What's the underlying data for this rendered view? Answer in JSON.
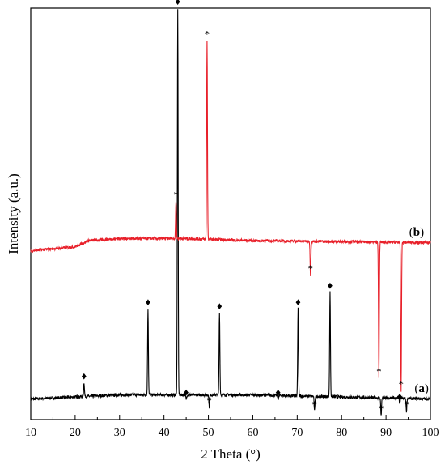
{
  "chart_data": {
    "type": "line",
    "xlabel": "2 Theta (°)",
    "ylabel": "Intensity (a.u.)",
    "xlim": [
      10,
      100
    ],
    "xticks": [
      10,
      20,
      30,
      40,
      50,
      60,
      70,
      80,
      90,
      100
    ],
    "y_tick_labels": "none",
    "grid": false,
    "legend": "none",
    "series": [
      {
        "name": "(a)",
        "color": "#000000",
        "baseline": [
          [
            10,
            0.05
          ],
          [
            30,
            0.06
          ],
          [
            60,
            0.06
          ],
          [
            100,
            0.05
          ]
        ],
        "peaks": [
          {
            "x": 22.0,
            "intensity": 0.09,
            "marker": "♦"
          },
          {
            "x": 36.4,
            "intensity": 0.27,
            "marker": "♦"
          },
          {
            "x": 43.1,
            "intensity": 1.0,
            "marker": "♦"
          },
          {
            "x": 45.0,
            "intensity": 0.05,
            "marker": "♦"
          },
          {
            "x": 50.2,
            "intensity": 0.03,
            "marker": "*"
          },
          {
            "x": 52.5,
            "intensity": 0.26,
            "marker": "♦"
          },
          {
            "x": 65.7,
            "intensity": 0.05,
            "marker": "♦"
          },
          {
            "x": 70.2,
            "intensity": 0.27,
            "marker": "♦"
          },
          {
            "x": 73.9,
            "intensity": 0.02,
            "marker": "*"
          },
          {
            "x": 77.4,
            "intensity": 0.31,
            "marker": "♦"
          },
          {
            "x": 88.9,
            "intensity": 0.01,
            "marker": "*"
          },
          {
            "x": 93.1,
            "intensity": 0.04,
            "marker": "♦"
          },
          {
            "x": 94.6,
            "intensity": 0.02,
            "marker": "*"
          }
        ]
      },
      {
        "name": "(b)",
        "color": "#e8202a",
        "baseline": [
          [
            10,
            0.41
          ],
          [
            20,
            0.42
          ],
          [
            23,
            0.435
          ],
          [
            30,
            0.44
          ],
          [
            45,
            0.44
          ],
          [
            60,
            0.435
          ],
          [
            100,
            0.43
          ]
        ],
        "peaks": [
          {
            "x": 42.7,
            "intensity": 0.53,
            "marker": "*"
          },
          {
            "x": 49.7,
            "intensity": 0.92,
            "marker": "*"
          },
          {
            "x": 73.0,
            "intensity": 0.35,
            "marker": "*"
          },
          {
            "x": 88.4,
            "intensity": 0.1,
            "marker": "*"
          },
          {
            "x": 93.4,
            "intensity": 0.07,
            "marker": "*"
          }
        ]
      }
    ]
  }
}
